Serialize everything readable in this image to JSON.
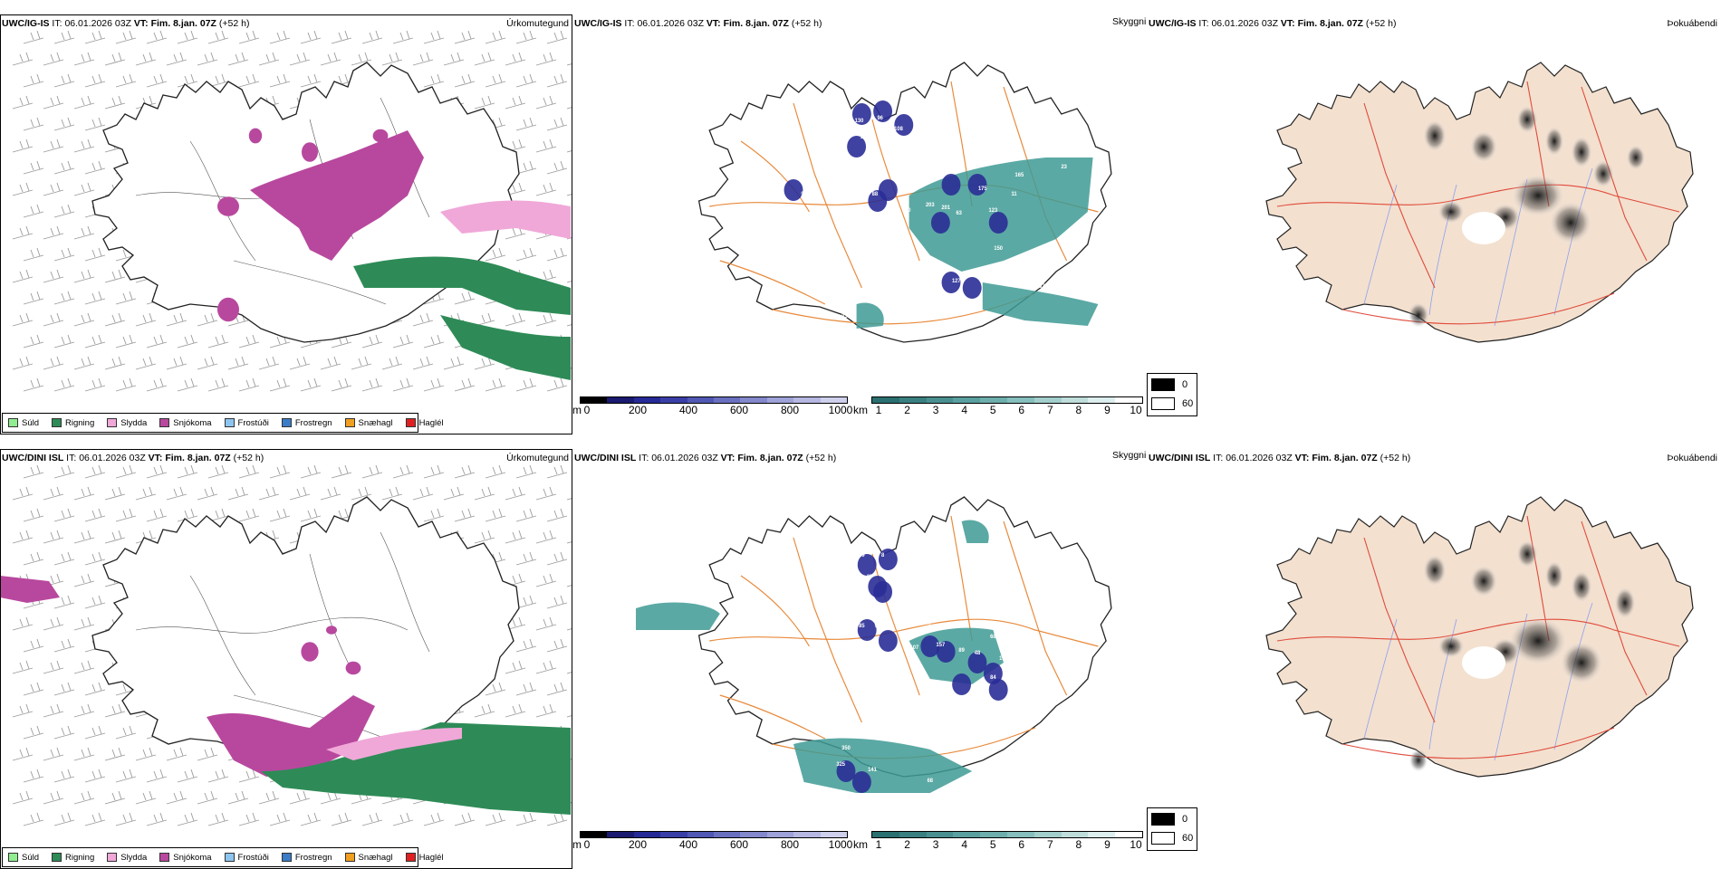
{
  "rows": [
    {
      "id": "top",
      "left": {
        "model": "UWC/IG-IS",
        "it_label": "IT:",
        "it_value": "06.01.2026 03Z",
        "vt_label": "VT:",
        "vt_value": "Fim. 8.jan. 07Z",
        "lead": "(+52 h)",
        "panel_title": "Úrkomutegund"
      },
      "mid": {
        "model": "UWC/IG-IS",
        "it_label": "IT:",
        "it_value": "06.01.2026 03Z",
        "vt_label": "VT:",
        "vt_value": "Fim. 8.jan. 07Z",
        "lead": "(+52 h)",
        "panel_title": "Skyggni",
        "labels": [
          "130",
          "96",
          "108",
          "132",
          "89",
          "88",
          "92",
          "238",
          "20",
          "76",
          "300",
          "203",
          "201",
          "63",
          "175",
          "123",
          "11",
          "165",
          "221",
          "23",
          "150",
          "168",
          "127",
          "167",
          "173",
          "238"
        ]
      },
      "right": {
        "model": "UWC/IG-IS",
        "it_label": "IT:",
        "it_value": "06.01.2026 03Z",
        "vt_label": "VT:",
        "vt_value": "Fim. 8.jan. 07Z",
        "lead": "(+52 h)",
        "panel_title": "Þokuábendi"
      }
    },
    {
      "id": "bottom",
      "left": {
        "model": "UWC/DINI ISL",
        "it_label": "IT:",
        "it_value": "06.01.2026 03Z",
        "vt_label": "VT:",
        "vt_value": "Fim. 8.jan. 07Z",
        "lead": "(+52 h)",
        "panel_title": "Úrkomutegund"
      },
      "mid": {
        "model": "UWC/DINI ISL",
        "it_label": "IT:",
        "it_value": "06.01.2026 03Z",
        "vt_label": "VT:",
        "vt_value": "Fim. 8.jan. 07Z",
        "lead": "(+52 h)",
        "panel_title": "Skyggni",
        "labels": [
          "89",
          "8",
          "10",
          "37",
          "14",
          "85",
          "97",
          "84",
          "72",
          "157",
          "107",
          "89",
          "68",
          "48",
          "102",
          "84",
          "69",
          "54",
          "350",
          "325",
          "141",
          "68",
          "92",
          "63",
          "13",
          "43"
        ]
      },
      "right": {
        "model": "UWC/DINI ISL",
        "it_label": "IT:",
        "it_value": "06.01.2026 03Z",
        "vt_label": "VT:",
        "vt_value": "Fim. 8.jan. 07Z",
        "lead": "(+52 h)",
        "panel_title": "Þokuábendi"
      }
    }
  ],
  "precip_legend": [
    {
      "label": "Súld",
      "color": "#90ee90"
    },
    {
      "label": "Rigning",
      "color": "#2e8b57"
    },
    {
      "label": "Slydda",
      "color": "#f0a8d8"
    },
    {
      "label": "Snjókoma",
      "color": "#b8489e"
    },
    {
      "label": "Frostúði",
      "color": "#8ec5f0"
    },
    {
      "label": "Frostregn",
      "color": "#3a7cc8"
    },
    {
      "label": "Snæhagl",
      "color": "#f0a020"
    },
    {
      "label": "Haglél",
      "color": "#e02020"
    }
  ],
  "height_scale": {
    "unit": "m",
    "ticks": [
      "0",
      "200",
      "400",
      "600",
      "800",
      "1000"
    ],
    "colors": [
      "#000000",
      "#1a1a70",
      "#262a96",
      "#3a3fa8",
      "#5058b4",
      "#6a70c0",
      "#8488cc",
      "#9ea2d8",
      "#b6b8e2",
      "#cfd0ec"
    ]
  },
  "km_scale": {
    "unit": "km",
    "ticks": [
      "1",
      "2",
      "3",
      "4",
      "5",
      "6",
      "7",
      "8",
      "9",
      "10"
    ],
    "colors": [
      "#2a7070",
      "#3a8080",
      "#4a9090",
      "#5aa0a0",
      "#6eafad",
      "#86bfbd",
      "#a2cfcc",
      "#bfdedb",
      "#dceeed",
      "#ffffff"
    ]
  },
  "fog_legend": {
    "dark_label": "0",
    "light_label": "60"
  },
  "colors": {
    "snow": "#b8489e",
    "rain": "#2e8b57",
    "sleet": "#f0a8d8",
    "teal": "#3e9a94",
    "deepblue": "#2a2e96",
    "land_fog": "#f3e0cf",
    "road_orange": "#e8893a",
    "road_red": "#e04a3a",
    "river": "#8aa0f0"
  }
}
